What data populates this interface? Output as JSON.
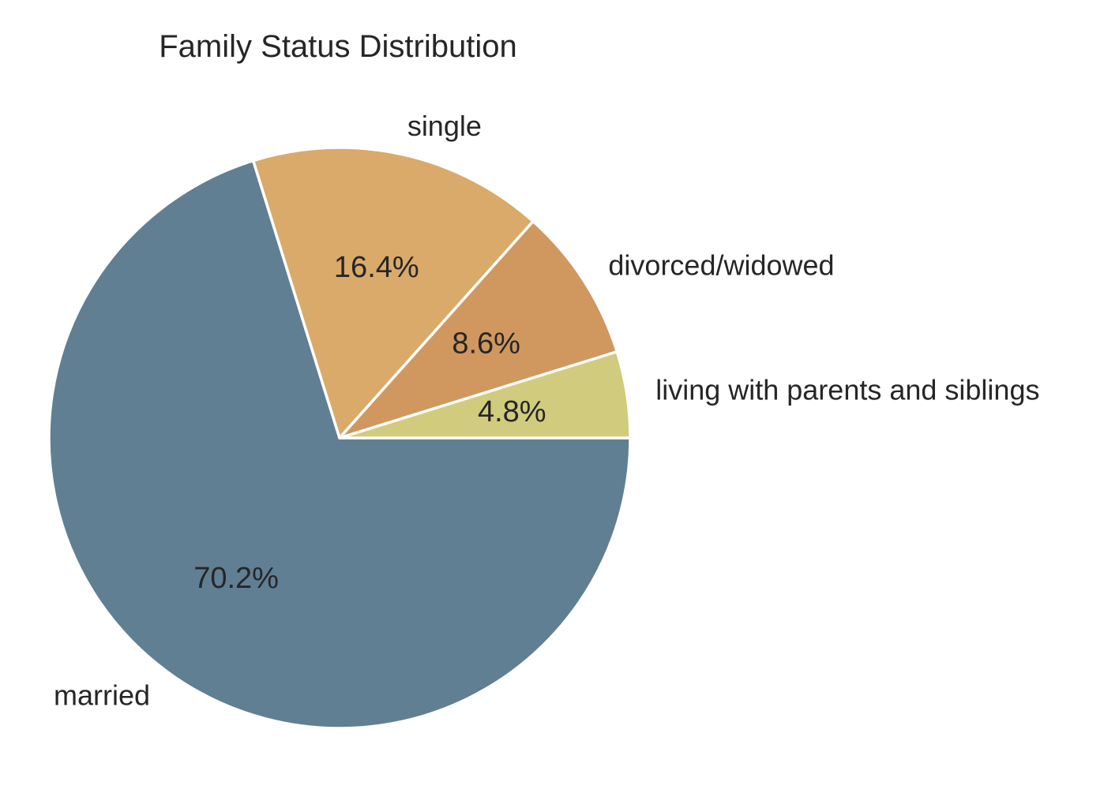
{
  "chart_data": {
    "type": "pie",
    "title": "Family Status Distribution",
    "start_angle_deg": 0,
    "direction": "clockwise",
    "slices": [
      {
        "label": "married",
        "pct_label": "70.2%",
        "value": 70.2,
        "color": "#607f93"
      },
      {
        "label": "single",
        "pct_label": "16.4%",
        "value": 16.4,
        "color": "#d9aa69"
      },
      {
        "label": "divorced/widowed",
        "pct_label": "8.6%",
        "value": 8.6,
        "color": "#d0975e"
      },
      {
        "label": "living with parents and siblings",
        "pct_label": "4.8%",
        "value": 4.8,
        "color": "#d1cb7e"
      }
    ]
  }
}
